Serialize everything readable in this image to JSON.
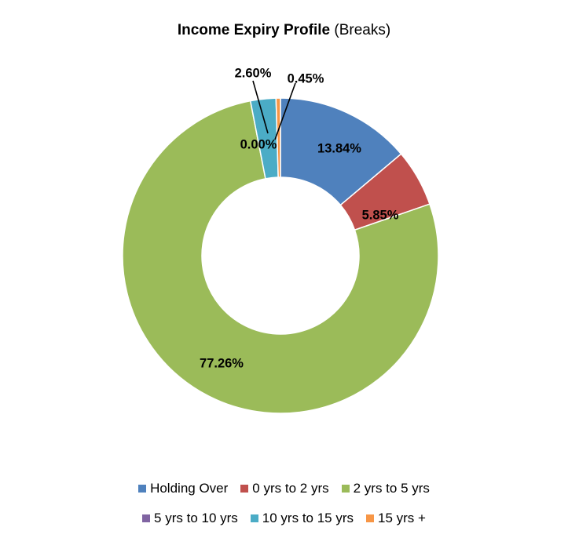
{
  "chart_data": {
    "type": "pie",
    "variant": "donut",
    "title": "Income Expiry Profile",
    "subtitle": "(Breaks)",
    "categories": [
      "Holding Over",
      "0 yrs to 2 yrs",
      "2 yrs to 5 yrs",
      "5 yrs to 10 yrs",
      "10 yrs to 15 yrs",
      "15 yrs +"
    ],
    "values": [
      13.84,
      5.85,
      77.26,
      0.0,
      2.6,
      0.45
    ],
    "data_labels": [
      "13.84%",
      "5.85%",
      "77.26%",
      "0.00%",
      "2.60%",
      "0.45%"
    ],
    "colors": [
      "#4f81bd",
      "#c0504d",
      "#9bbb59",
      "#8064a2",
      "#4bacc6",
      "#f79646"
    ],
    "legend_position": "bottom"
  }
}
